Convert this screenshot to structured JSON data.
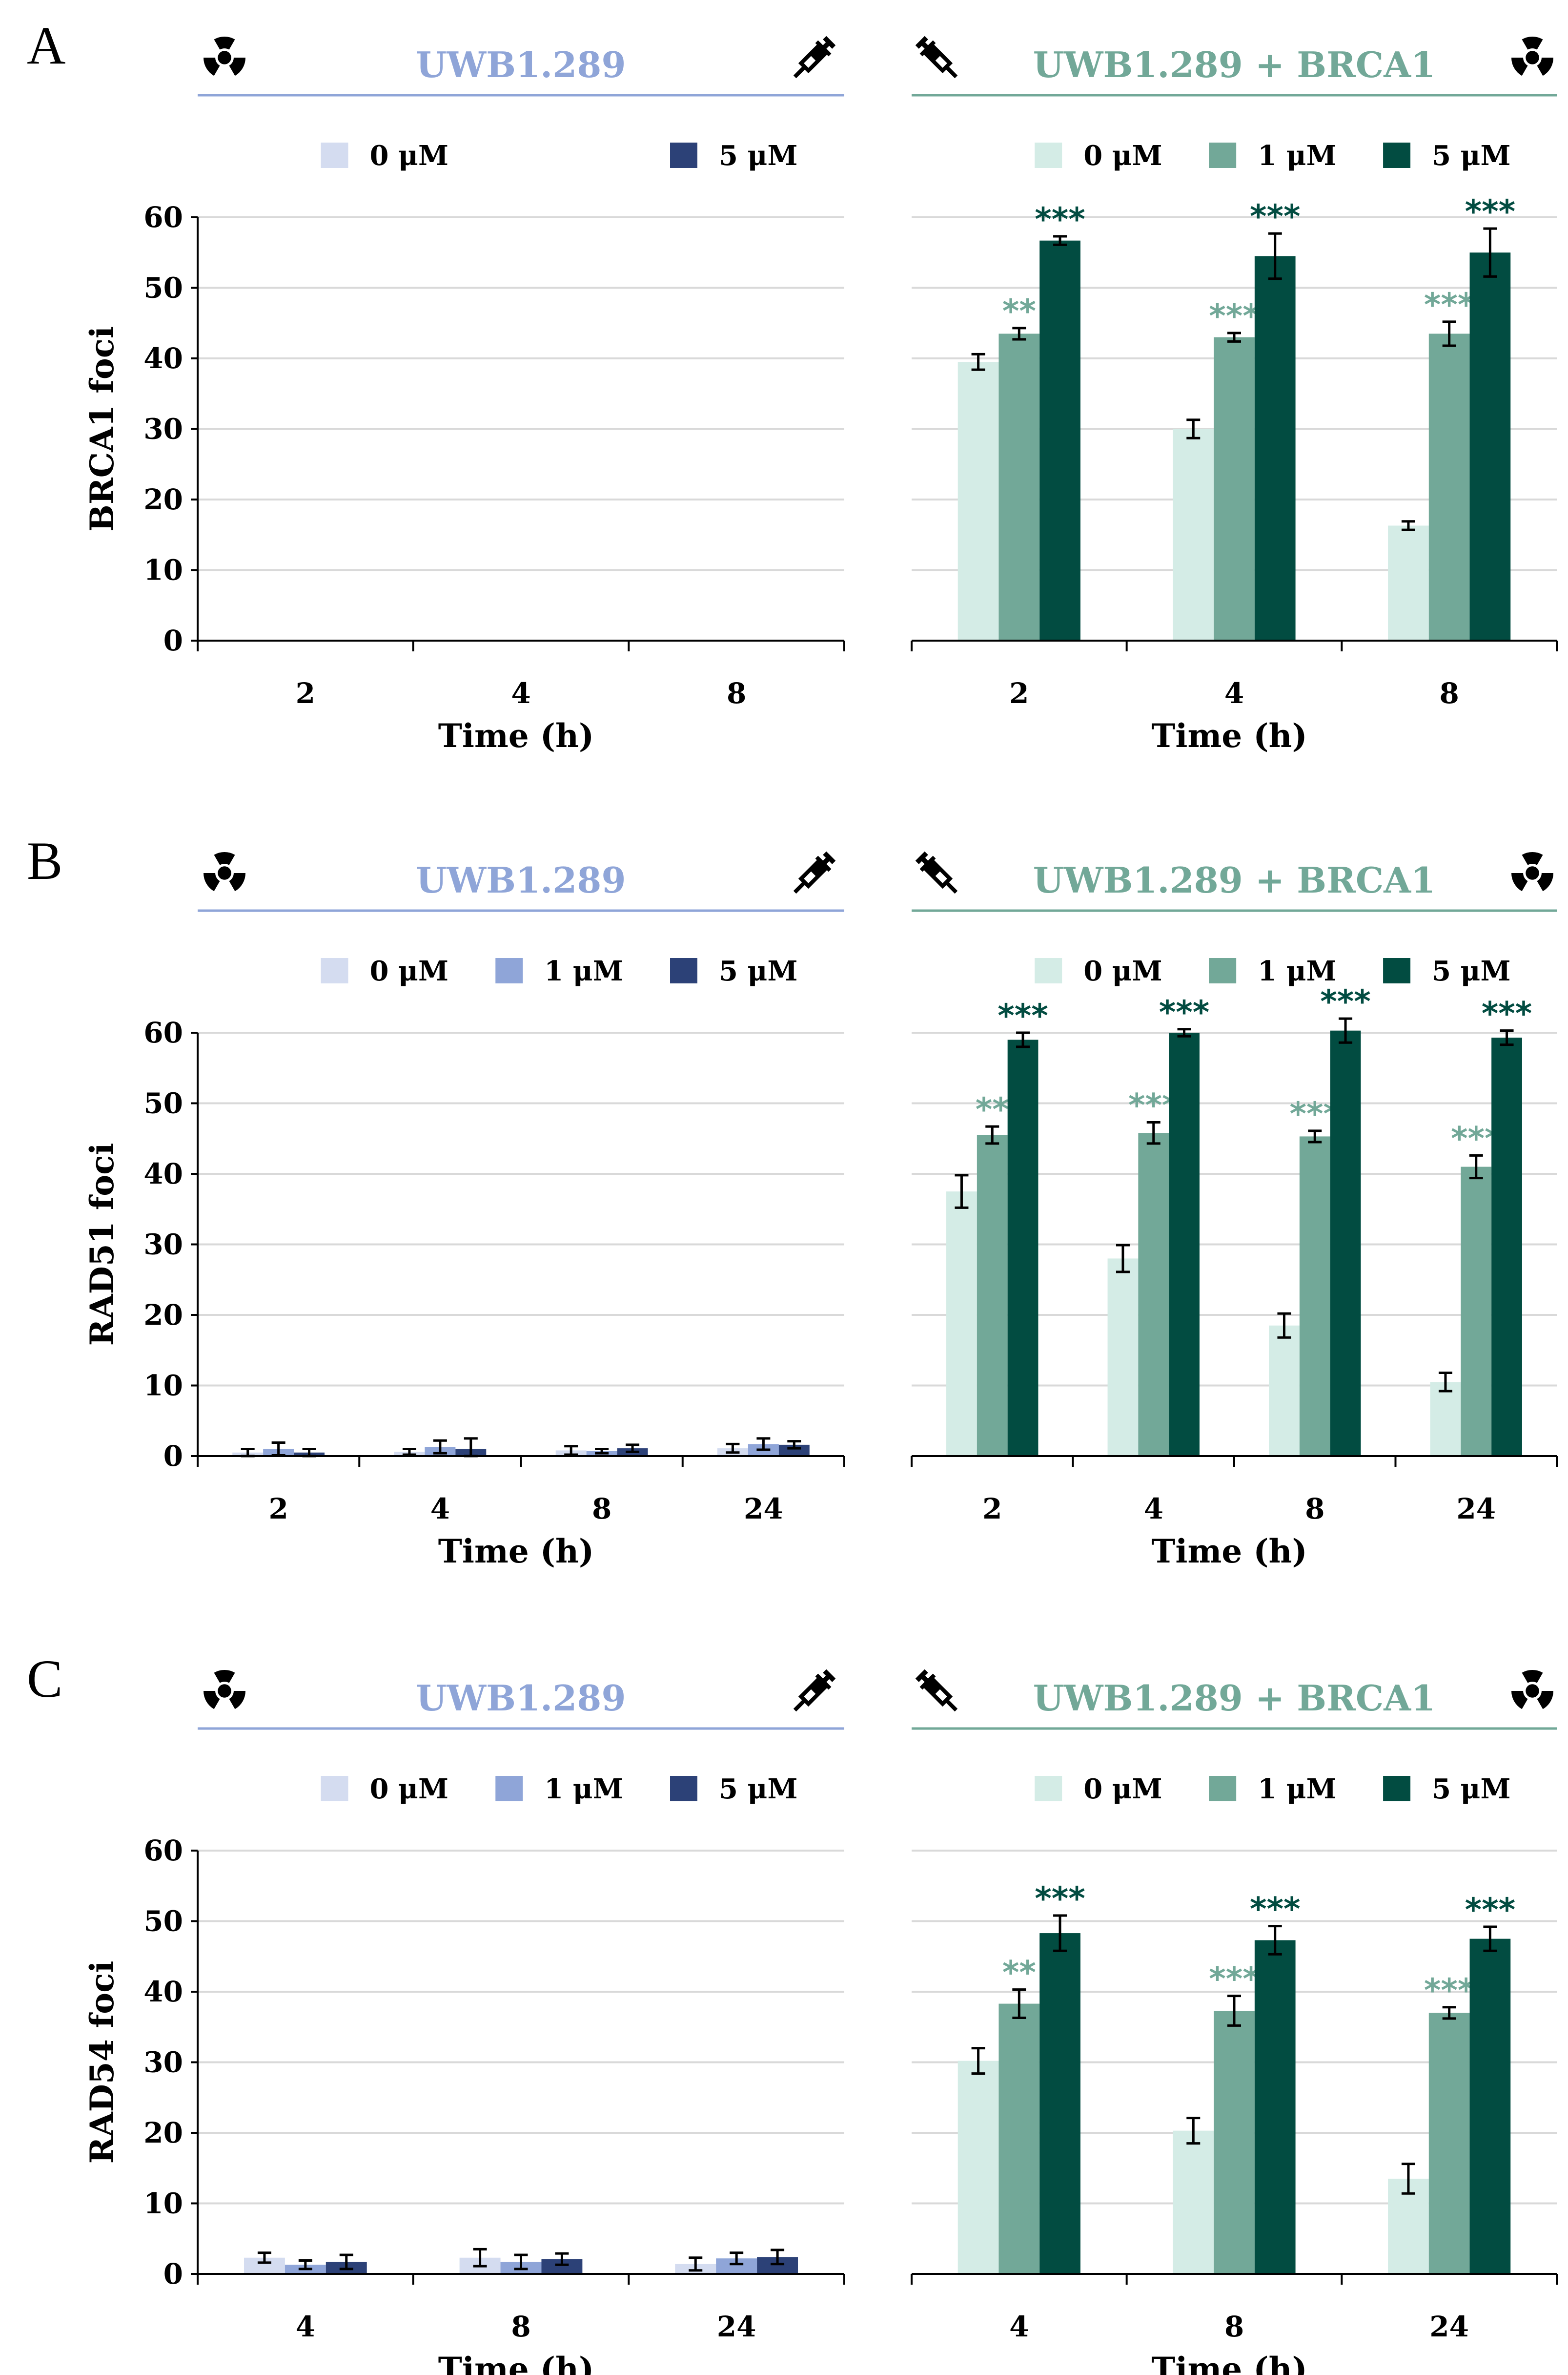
{
  "figure": {
    "panels": [
      {
        "letter": "A",
        "ylabel": "BRCA1 foci",
        "ylim": [
          0,
          60
        ],
        "yticks": [
          "0",
          "10",
          "20",
          "30",
          "40",
          "50",
          "60"
        ],
        "charts": [
          {
            "title": "UWB1.289",
            "title_color": "#8fa5d8",
            "legend": [
              {
                "label": "0 μM",
                "color": "#d4dcf0"
              },
              {
                "label": "5 μM",
                "color": "#2c4177"
              }
            ],
            "xlabel": "Time (h)",
            "categories": [
              "2",
              "4",
              "8"
            ],
            "series": [
              {
                "name": "0 μM",
                "color": "#d4dcf0",
                "values": [
                  0,
                  0,
                  0
                ],
                "errors": [
                  0,
                  0,
                  0
                ],
                "sig": [
                  "",
                  "",
                  ""
                ]
              },
              {
                "name": "5 μM",
                "color": "#2c4177",
                "values": [
                  0,
                  0,
                  0
                ],
                "errors": [
                  0,
                  0,
                  0
                ],
                "sig": [
                  "",
                  "",
                  ""
                ]
              }
            ]
          },
          {
            "title": "UWB1.289 + BRCA1",
            "title_color": "#72a898",
            "legend": [
              {
                "label": "0 μM",
                "color": "#d4ece6"
              },
              {
                "label": "1 μM",
                "color": "#72a898"
              },
              {
                "label": "5 μM",
                "color": "#024c41"
              }
            ],
            "xlabel": "Time (h)",
            "categories": [
              "2",
              "4",
              "8"
            ],
            "series": [
              {
                "name": "0 μM",
                "color": "#d4ece6",
                "values": [
                  39.5,
                  30,
                  16.3
                ],
                "errors": [
                  1.1,
                  1.3,
                  0.6
                ],
                "sig": [
                  "",
                  "",
                  ""
                ]
              },
              {
                "name": "1 μM",
                "color": "#72a898",
                "values": [
                  43.5,
                  43,
                  43.5
                ],
                "errors": [
                  0.8,
                  0.6,
                  1.7
                ],
                "sig": [
                  "**",
                  "***",
                  "***"
                ]
              },
              {
                "name": "5 μM",
                "color": "#024c41",
                "values": [
                  56.7,
                  54.5,
                  55
                ],
                "errors": [
                  0.6,
                  3.2,
                  3.4
                ],
                "sig": [
                  "***",
                  "***",
                  "***"
                ]
              }
            ]
          }
        ]
      },
      {
        "letter": "B",
        "ylabel": "RAD51 foci",
        "ylim": [
          0,
          60
        ],
        "yticks": [
          "0",
          "10",
          "20",
          "30",
          "40",
          "50",
          "60"
        ],
        "charts": [
          {
            "title": "UWB1.289",
            "title_color": "#8fa5d8",
            "legend": [
              {
                "label": "0 μM",
                "color": "#d4dcf0"
              },
              {
                "label": "1 μM",
                "color": "#8fa5d8"
              },
              {
                "label": "5 μM",
                "color": "#2c4177"
              }
            ],
            "xlabel": "Time (h)",
            "categories": [
              "2",
              "4",
              "8",
              "24"
            ],
            "series": [
              {
                "name": "0 μM",
                "color": "#d4dcf0",
                "values": [
                  0.5,
                  0.6,
                  0.8,
                  1.1
                ],
                "errors": [
                  0.5,
                  0.4,
                  0.6,
                  0.6
                ],
                "sig": [
                  "",
                  "",
                  "",
                  ""
                ]
              },
              {
                "name": "1 μM",
                "color": "#8fa5d8",
                "values": [
                  1.0,
                  1.3,
                  0.7,
                  1.7
                ],
                "errors": [
                  0.9,
                  0.9,
                  0.3,
                  0.8
                ],
                "sig": [
                  "",
                  "",
                  "",
                  ""
                ]
              },
              {
                "name": "5 μM",
                "color": "#2c4177",
                "values": [
                  0.5,
                  1.0,
                  1.1,
                  1.6
                ],
                "errors": [
                  0.5,
                  1.5,
                  0.5,
                  0.5
                ],
                "sig": [
                  "",
                  "",
                  "",
                  ""
                ]
              }
            ]
          },
          {
            "title": "UWB1.289 + BRCA1",
            "title_color": "#72a898",
            "legend": [
              {
                "label": "0 μM",
                "color": "#d4ece6"
              },
              {
                "label": "1 μM",
                "color": "#72a898"
              },
              {
                "label": "5 μM",
                "color": "#024c41"
              }
            ],
            "xlabel": "Time (h)",
            "categories": [
              "2",
              "4",
              "8",
              "24"
            ],
            "series": [
              {
                "name": "0 μM",
                "color": "#d4ece6",
                "values": [
                  37.5,
                  28,
                  18.5,
                  10.5
                ],
                "errors": [
                  2.3,
                  1.9,
                  1.7,
                  1.3
                ],
                "sig": [
                  "",
                  "",
                  "",
                  ""
                ]
              },
              {
                "name": "1 μM",
                "color": "#72a898",
                "values": [
                  45.5,
                  45.8,
                  45.3,
                  41
                ],
                "errors": [
                  1.2,
                  1.5,
                  0.8,
                  1.6
                ],
                "sig": [
                  "**",
                  "***",
                  "***",
                  "***"
                ]
              },
              {
                "name": "5 μM",
                "color": "#024c41",
                "values": [
                  59,
                  60,
                  60.3,
                  59.3
                ],
                "errors": [
                  1.0,
                  0.5,
                  1.7,
                  1.0
                ],
                "sig": [
                  "***",
                  "***",
                  "***",
                  "***"
                ]
              }
            ]
          }
        ]
      },
      {
        "letter": "C",
        "ylabel": "RAD54 foci",
        "ylim": [
          0,
          60
        ],
        "yticks": [
          "0",
          "10",
          "20",
          "30",
          "40",
          "50",
          "60"
        ],
        "charts": [
          {
            "title": "UWB1.289",
            "title_color": "#8fa5d8",
            "legend": [
              {
                "label": "0 μM",
                "color": "#d4dcf0"
              },
              {
                "label": "1 μM",
                "color": "#8fa5d8"
              },
              {
                "label": "5 μM",
                "color": "#2c4177"
              }
            ],
            "xlabel": "Time (h)",
            "categories": [
              "4",
              "8",
              "24"
            ],
            "series": [
              {
                "name": "0 μM",
                "color": "#d4dcf0",
                "values": [
                  2.3,
                  2.3,
                  1.4
                ],
                "errors": [
                  0.7,
                  1.2,
                  0.9
                ],
                "sig": [
                  "",
                  "",
                  ""
                ]
              },
              {
                "name": "1 μM",
                "color": "#8fa5d8",
                "values": [
                  1.3,
                  1.7,
                  2.2
                ],
                "errors": [
                  0.6,
                  1.0,
                  0.8
                ],
                "sig": [
                  "",
                  "",
                  ""
                ]
              },
              {
                "name": "5 μM",
                "color": "#2c4177",
                "values": [
                  1.7,
                  2.1,
                  2.4
                ],
                "errors": [
                  1.0,
                  0.8,
                  1.0
                ],
                "sig": [
                  "",
                  "",
                  ""
                ]
              }
            ]
          },
          {
            "title": "UWB1.289 + BRCA1",
            "title_color": "#72a898",
            "legend": [
              {
                "label": "0 μM",
                "color": "#d4ece6"
              },
              {
                "label": "1 μM",
                "color": "#72a898"
              },
              {
                "label": "5 μM",
                "color": "#024c41"
              }
            ],
            "xlabel": "Time (h)",
            "categories": [
              "4",
              "8",
              "24"
            ],
            "series": [
              {
                "name": "0 μM",
                "color": "#d4ece6",
                "values": [
                  30.2,
                  20.3,
                  13.5
                ],
                "errors": [
                  1.8,
                  1.8,
                  2.1
                ],
                "sig": [
                  "",
                  "",
                  ""
                ]
              },
              {
                "name": "1 μM",
                "color": "#72a898",
                "values": [
                  38.3,
                  37.3,
                  37
                ],
                "errors": [
                  2.0,
                  2.1,
                  0.8
                ],
                "sig": [
                  "**",
                  "***",
                  "***"
                ]
              },
              {
                "name": "5 μM",
                "color": "#024c41",
                "values": [
                  48.3,
                  47.3,
                  47.5
                ],
                "errors": [
                  2.5,
                  2.0,
                  1.7
                ],
                "sig": [
                  "***",
                  "***",
                  "***"
                ]
              }
            ]
          }
        ]
      }
    ]
  },
  "chart_data": [
    {
      "panel": "A",
      "chart": "UWB1.289",
      "type": "bar",
      "title": "UWB1.289",
      "xlabel": "Time (h)",
      "ylabel": "BRCA1 foci",
      "ylim": [
        0,
        60
      ],
      "categories": [
        "2",
        "4",
        "8"
      ],
      "series": [
        {
          "name": "0 μM",
          "values": [
            0,
            0,
            0
          ]
        },
        {
          "name": "5 μM",
          "values": [
            0,
            0,
            0
          ]
        }
      ]
    },
    {
      "panel": "A",
      "chart": "UWB1.289 + BRCA1",
      "type": "bar",
      "title": "UWB1.289 + BRCA1",
      "xlabel": "Time (h)",
      "ylabel": "BRCA1 foci",
      "ylim": [
        0,
        60
      ],
      "categories": [
        "2",
        "4",
        "8"
      ],
      "series": [
        {
          "name": "0 μM",
          "values": [
            39.5,
            30,
            16.3
          ]
        },
        {
          "name": "1 μM",
          "values": [
            43.5,
            43,
            43.5
          ]
        },
        {
          "name": "5 μM",
          "values": [
            56.7,
            54.5,
            55
          ]
        }
      ]
    },
    {
      "panel": "B",
      "chart": "UWB1.289",
      "type": "bar",
      "title": "UWB1.289",
      "xlabel": "Time (h)",
      "ylabel": "RAD51 foci",
      "ylim": [
        0,
        60
      ],
      "categories": [
        "2",
        "4",
        "8",
        "24"
      ],
      "series": [
        {
          "name": "0 μM",
          "values": [
            0.5,
            0.6,
            0.8,
            1.1
          ]
        },
        {
          "name": "1 μM",
          "values": [
            1.0,
            1.3,
            0.7,
            1.7
          ]
        },
        {
          "name": "5 μM",
          "values": [
            0.5,
            1.0,
            1.1,
            1.6
          ]
        }
      ]
    },
    {
      "panel": "B",
      "chart": "UWB1.289 + BRCA1",
      "type": "bar",
      "title": "UWB1.289 + BRCA1",
      "xlabel": "Time (h)",
      "ylabel": "RAD51 foci",
      "ylim": [
        0,
        60
      ],
      "categories": [
        "2",
        "4",
        "8",
        "24"
      ],
      "series": [
        {
          "name": "0 μM",
          "values": [
            37.5,
            28,
            18.5,
            10.5
          ]
        },
        {
          "name": "1 μM",
          "values": [
            45.5,
            45.8,
            45.3,
            41
          ]
        },
        {
          "name": "5 μM",
          "values": [
            59,
            60,
            60.3,
            59.3
          ]
        }
      ]
    },
    {
      "panel": "C",
      "chart": "UWB1.289",
      "type": "bar",
      "title": "UWB1.289",
      "xlabel": "Time (h)",
      "ylabel": "RAD54 foci",
      "ylim": [
        0,
        60
      ],
      "categories": [
        "4",
        "8",
        "24"
      ],
      "series": [
        {
          "name": "0 μM",
          "values": [
            2.3,
            2.3,
            1.4
          ]
        },
        {
          "name": "1 μM",
          "values": [
            1.3,
            1.7,
            2.2
          ]
        },
        {
          "name": "5 μM",
          "values": [
            1.7,
            2.1,
            2.4
          ]
        }
      ]
    },
    {
      "panel": "C",
      "chart": "UWB1.289 + BRCA1",
      "type": "bar",
      "title": "UWB1.289 + BRCA1",
      "xlabel": "Time (h)",
      "ylabel": "RAD54 foci",
      "ylim": [
        0,
        60
      ],
      "categories": [
        "4",
        "8",
        "24"
      ],
      "series": [
        {
          "name": "0 μM",
          "values": [
            30.2,
            20.3,
            13.5
          ]
        },
        {
          "name": "1 μM",
          "values": [
            38.3,
            37.3,
            37
          ]
        },
        {
          "name": "5 μM",
          "values": [
            48.3,
            47.3,
            47.5
          ]
        }
      ]
    }
  ]
}
